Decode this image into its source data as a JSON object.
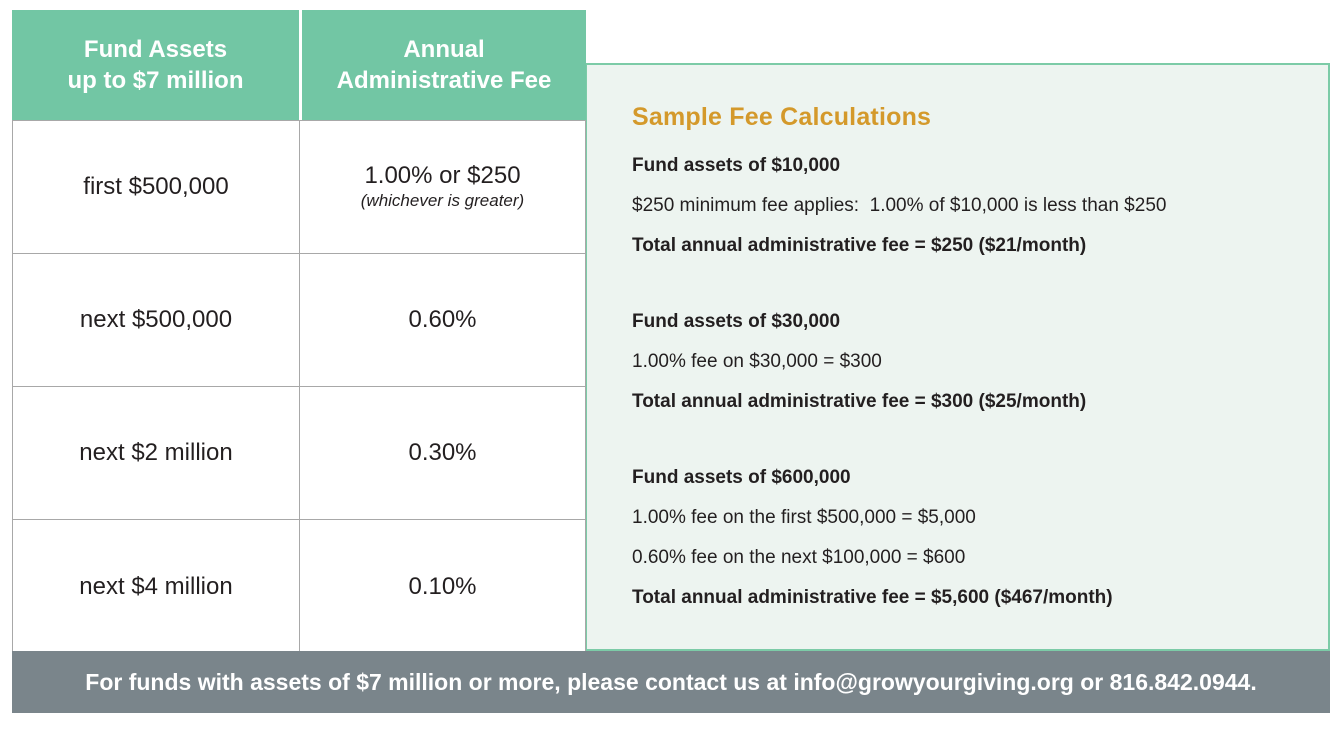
{
  "colors": {
    "accent_green": "#72C6A4",
    "panel_bg": "#EDF4F0",
    "panel_border": "#7CCBA7",
    "heading_gold": "#D4992B",
    "footer_gray": "#7A858B"
  },
  "table": {
    "header": {
      "col1_line1": "Fund Assets",
      "col1_line2": "up to $7 million",
      "col2_line1": "Annual",
      "col2_line2": "Administrative Fee"
    },
    "rows": [
      {
        "tier": "first $500,000",
        "fee": "1.00% or $250",
        "fee_note": "(whichever is greater)"
      },
      {
        "tier": "next $500,000",
        "fee": "0.60%"
      },
      {
        "tier": "next $2 million",
        "fee": "0.30%"
      },
      {
        "tier": "next $4 million",
        "fee": "0.10%"
      }
    ]
  },
  "panel": {
    "title": "Sample Fee Calculations",
    "examples": [
      {
        "heading": "Fund assets of $10,000",
        "lines": [
          "$250 minimum fee applies:  1.00% of $10,000 is less than $250"
        ],
        "total": "Total annual administrative fee = $250 ($21/month)"
      },
      {
        "heading": "Fund assets of $30,000",
        "lines": [
          "1.00% fee on $30,000 = $300"
        ],
        "total": "Total annual administrative fee = $300 ($25/month)"
      },
      {
        "heading": "Fund assets of $600,000",
        "lines": [
          "1.00% fee on the first $500,000 = $5,000",
          "0.60% fee on the next $100,000 = $600"
        ],
        "total": "Total annual administrative fee = $5,600 ($467/month)"
      }
    ]
  },
  "footer": {
    "text": "For funds with assets of $7 million or more, please contact us at info@growyourgiving.org or 816.842.0944."
  }
}
